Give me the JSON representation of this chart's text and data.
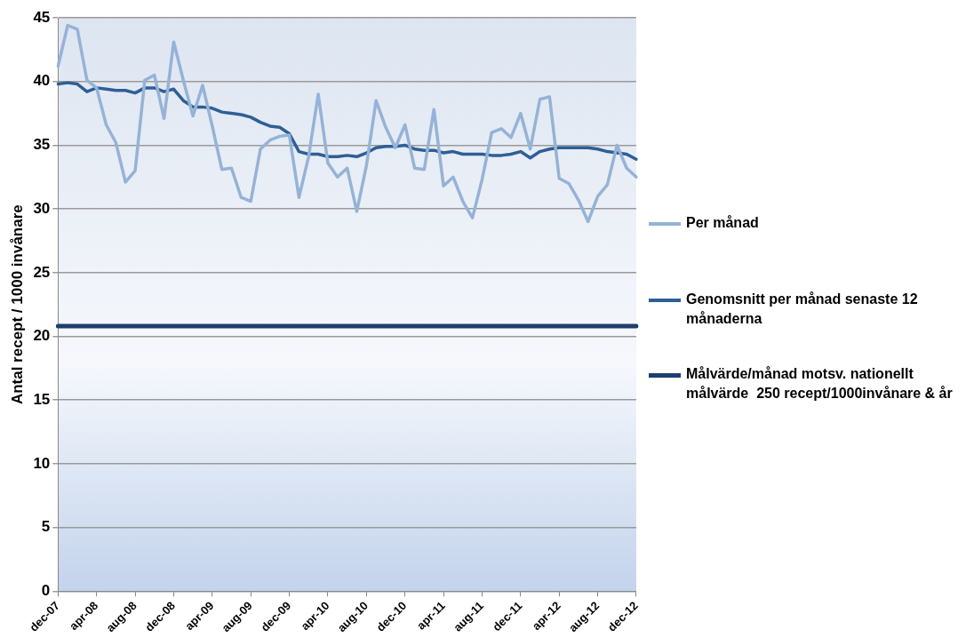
{
  "chart_data": {
    "type": "line",
    "ylabel": "Antal recept / 1000 invånare",
    "categories": [
      "dec-07",
      null,
      null,
      null,
      "apr-08",
      null,
      null,
      null,
      "aug-08",
      null,
      null,
      null,
      "dec-08",
      null,
      null,
      null,
      "apr-09",
      null,
      null,
      null,
      "aug-09",
      null,
      null,
      null,
      "dec-09",
      null,
      null,
      null,
      "apr-10",
      null,
      null,
      null,
      "aug-10",
      null,
      null,
      null,
      "dec-10",
      null,
      null,
      null,
      "apr-11",
      null,
      null,
      null,
      "aug-11",
      null,
      null,
      null,
      "dec-11",
      null,
      null,
      null,
      "apr-12",
      null,
      null,
      null,
      "aug-12",
      null,
      null,
      null,
      "dec-12"
    ],
    "series": [
      {
        "name": "Per månad",
        "color": "#95b3d7",
        "values": [
          41.2,
          44.4,
          44.1,
          40.1,
          39.5,
          36.6,
          35.2,
          32.1,
          33.0,
          40.1,
          40.5,
          37.1,
          43.1,
          40.1,
          37.3,
          39.7,
          36.5,
          33.1,
          33.2,
          30.9,
          30.6,
          34.7,
          35.4,
          35.7,
          35.8,
          30.9,
          34.1,
          39.0,
          33.6,
          32.5,
          33.2,
          29.8,
          33.4,
          38.5,
          36.4,
          34.8,
          36.6,
          33.2,
          33.1,
          37.8,
          31.8,
          32.5,
          30.6,
          29.3,
          32.3,
          36.0,
          36.3,
          35.6,
          37.5,
          34.7,
          38.6,
          38.8,
          32.4,
          32.0,
          30.7,
          29.0,
          31.0,
          31.9,
          35.0,
          33.2,
          32.5
        ]
      },
      {
        "name": "Genomsnitt per månad senaste 12 månaderna",
        "color": "#2e5f95",
        "values": [
          39.8,
          39.9,
          39.8,
          39.2,
          39.5,
          39.4,
          39.3,
          39.3,
          39.1,
          39.5,
          39.5,
          39.2,
          39.4,
          38.5,
          38.0,
          38.0,
          37.9,
          37.6,
          37.5,
          37.4,
          37.2,
          36.8,
          36.5,
          36.4,
          35.9,
          34.5,
          34.3,
          34.3,
          34.1,
          34.1,
          34.2,
          34.1,
          34.4,
          34.8,
          34.9,
          34.9,
          35.0,
          34.7,
          34.6,
          34.6,
          34.4,
          34.5,
          34.3,
          34.3,
          34.3,
          34.2,
          34.2,
          34.3,
          34.5,
          34.0,
          34.5,
          34.7,
          34.8,
          34.8,
          34.8,
          34.8,
          34.7,
          34.5,
          34.4,
          34.3,
          33.9
        ]
      },
      {
        "name": "Målvärde/månad motsv. nationellt målvärde  250 recept/1000invånare & år",
        "color": "#1f3e6e",
        "values": [
          20.8,
          20.8,
          20.8,
          20.8,
          20.8,
          20.8,
          20.8,
          20.8,
          20.8,
          20.8,
          20.8,
          20.8,
          20.8,
          20.8,
          20.8,
          20.8,
          20.8,
          20.8,
          20.8,
          20.8,
          20.8,
          20.8,
          20.8,
          20.8,
          20.8,
          20.8,
          20.8,
          20.8,
          20.8,
          20.8,
          20.8,
          20.8,
          20.8,
          20.8,
          20.8,
          20.8,
          20.8,
          20.8,
          20.8,
          20.8,
          20.8,
          20.8,
          20.8,
          20.8,
          20.8,
          20.8,
          20.8,
          20.8,
          20.8,
          20.8,
          20.8,
          20.8,
          20.8,
          20.8,
          20.8,
          20.8,
          20.8,
          20.8,
          20.8,
          20.8,
          20.8
        ]
      }
    ],
    "ylim": [
      0,
      45
    ],
    "yticks": [
      0,
      5,
      10,
      15,
      20,
      25,
      30,
      35,
      40,
      45
    ],
    "grid": "y",
    "legend": "right",
    "marker": "none",
    "line_style": "solid"
  }
}
